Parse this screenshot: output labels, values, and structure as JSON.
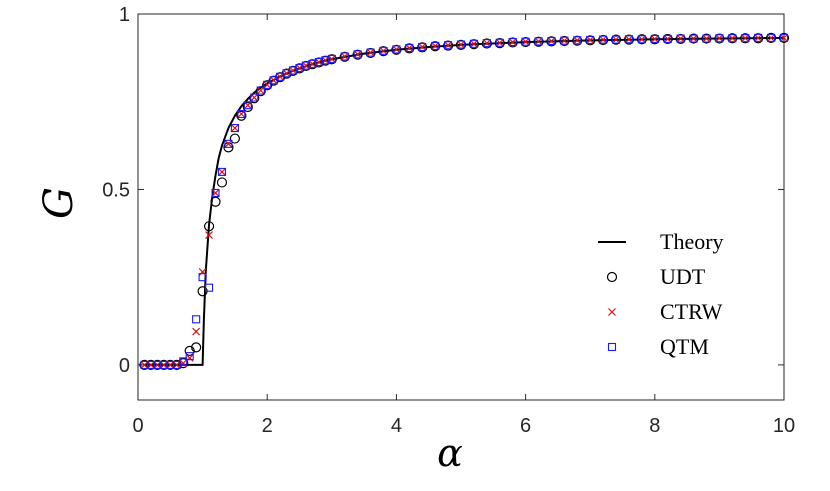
{
  "chart_data": {
    "type": "scatter",
    "xlabel": "α",
    "ylabel": "G",
    "xlim": [
      0,
      10
    ],
    "ylim": [
      -0.1,
      1.0
    ],
    "xticks": [
      0,
      2,
      4,
      6,
      8,
      10
    ],
    "yticks": [
      0,
      0.5,
      1
    ],
    "xtick_labels": [
      "0",
      "2",
      "4",
      "6",
      "8",
      "10"
    ],
    "ytick_labels": [
      "0",
      "0.5",
      "1"
    ],
    "grid": false,
    "legend_position": "lower-right",
    "theory": {
      "name": "Theory",
      "color": "#000000",
      "x": [
        0.1,
        0.5,
        0.95,
        1.0,
        1.02,
        1.05,
        1.1,
        1.15,
        1.2,
        1.25,
        1.3,
        1.4,
        1.5,
        1.6,
        1.7,
        1.8,
        1.9,
        2.0,
        2.2,
        2.4,
        2.6,
        2.8,
        3.0,
        3.5,
        4.0,
        4.5,
        5.0,
        6.0,
        7.0,
        8.0,
        9.0,
        10.0
      ],
      "y": [
        0,
        0,
        0,
        0,
        0.13,
        0.27,
        0.4,
        0.48,
        0.54,
        0.59,
        0.625,
        0.675,
        0.71,
        0.737,
        0.758,
        0.776,
        0.79,
        0.802,
        0.822,
        0.838,
        0.851,
        0.862,
        0.871,
        0.887,
        0.898,
        0.906,
        0.912,
        0.92,
        0.925,
        0.928,
        0.93,
        0.932
      ]
    },
    "series": [
      {
        "name": "UDT",
        "marker": "circle",
        "color": "#000000",
        "x": [
          0.1,
          0.2,
          0.3,
          0.4,
          0.5,
          0.6,
          0.7,
          0.8,
          0.9,
          1.0,
          1.1,
          1.2,
          1.3,
          1.4,
          1.5,
          1.6,
          1.7,
          1.8,
          1.9,
          2.0,
          2.1,
          2.2,
          2.3,
          2.4,
          2.5,
          2.6,
          2.7,
          2.8,
          2.9,
          3.0,
          3.2,
          3.4,
          3.6,
          3.8,
          4.0,
          4.2,
          4.4,
          4.6,
          4.8,
          5.0,
          5.2,
          5.4,
          5.6,
          5.8,
          6.0,
          6.2,
          6.4,
          6.6,
          6.8,
          7.0,
          7.2,
          7.4,
          7.6,
          7.8,
          8.0,
          8.2,
          8.4,
          8.6,
          8.8,
          9.0,
          9.2,
          9.4,
          9.6,
          9.8,
          10.0
        ],
        "values": [
          0,
          0,
          0,
          0,
          0,
          0,
          0.005,
          0.04,
          0.05,
          0.21,
          0.395,
          0.465,
          0.52,
          0.62,
          0.645,
          0.71,
          0.735,
          0.76,
          0.78,
          0.797,
          0.81,
          0.82,
          0.83,
          0.838,
          0.845,
          0.852,
          0.857,
          0.862,
          0.867,
          0.871,
          0.878,
          0.884,
          0.889,
          0.894,
          0.898,
          0.902,
          0.905,
          0.908,
          0.91,
          0.912,
          0.914,
          0.916,
          0.917,
          0.919,
          0.92,
          0.921,
          0.922,
          0.923,
          0.924,
          0.925,
          0.926,
          0.927,
          0.927,
          0.928,
          0.928,
          0.929,
          0.929,
          0.93,
          0.93,
          0.93,
          0.931,
          0.931,
          0.931,
          0.932,
          0.932
        ]
      },
      {
        "name": "CTRW",
        "marker": "x",
        "color": "#e01010",
        "x": [
          0.1,
          0.2,
          0.3,
          0.4,
          0.5,
          0.6,
          0.7,
          0.8,
          0.9,
          1.0,
          1.1,
          1.2,
          1.3,
          1.4,
          1.5,
          1.6,
          1.7,
          1.8,
          1.9,
          2.0,
          2.1,
          2.2,
          2.3,
          2.4,
          2.5,
          2.6,
          2.7,
          2.8,
          2.9,
          3.0,
          3.2,
          3.4,
          3.6,
          3.8,
          4.0,
          4.2,
          4.4,
          4.6,
          4.8,
          5.0,
          5.2,
          5.4,
          5.6,
          5.8,
          6.0,
          6.2,
          6.4,
          6.6,
          6.8,
          7.0,
          7.2,
          7.4,
          7.6,
          7.8,
          8.0,
          8.2,
          8.4,
          8.6,
          8.8,
          9.0,
          9.2,
          9.4,
          9.6,
          9.8,
          10.0
        ],
        "values": [
          0,
          0,
          0,
          0,
          0,
          0,
          0.005,
          0.02,
          0.095,
          0.265,
          0.37,
          0.49,
          0.55,
          0.63,
          0.675,
          0.715,
          0.74,
          0.762,
          0.782,
          0.798,
          0.811,
          0.821,
          0.831,
          0.839,
          0.846,
          0.853,
          0.858,
          0.863,
          0.868,
          0.872,
          0.879,
          0.885,
          0.89,
          0.895,
          0.899,
          0.903,
          0.906,
          0.909,
          0.911,
          0.913,
          0.915,
          0.917,
          0.918,
          0.92,
          0.921,
          0.922,
          0.923,
          0.924,
          0.925,
          0.926,
          0.927,
          0.927,
          0.928,
          0.928,
          0.929,
          0.929,
          0.93,
          0.93,
          0.93,
          0.931,
          0.931,
          0.931,
          0.932,
          0.932,
          0.932
        ]
      },
      {
        "name": "QTM",
        "marker": "square",
        "color": "#1a1aff",
        "x": [
          0.1,
          0.2,
          0.3,
          0.4,
          0.5,
          0.6,
          0.7,
          0.8,
          0.9,
          1.0,
          1.1,
          1.2,
          1.3,
          1.4,
          1.5,
          1.6,
          1.7,
          1.8,
          1.9,
          2.0,
          2.1,
          2.2,
          2.3,
          2.4,
          2.5,
          2.6,
          2.7,
          2.8,
          2.9,
          3.0,
          3.2,
          3.4,
          3.6,
          3.8,
          4.0,
          4.2,
          4.4,
          4.6,
          4.8,
          5.0,
          5.2,
          5.4,
          5.6,
          5.8,
          6.0,
          6.2,
          6.4,
          6.6,
          6.8,
          7.0,
          7.2,
          7.4,
          7.6,
          7.8,
          8.0,
          8.2,
          8.4,
          8.6,
          8.8,
          9.0,
          9.2,
          9.4,
          9.6,
          9.8,
          10.0
        ],
        "values": [
          0,
          0,
          0,
          0,
          0,
          0,
          0.01,
          0.025,
          0.13,
          0.25,
          0.22,
          0.49,
          0.55,
          0.63,
          0.675,
          0.715,
          0.74,
          0.762,
          0.782,
          0.798,
          0.811,
          0.821,
          0.831,
          0.839,
          0.846,
          0.853,
          0.858,
          0.863,
          0.868,
          0.872,
          0.879,
          0.885,
          0.89,
          0.895,
          0.899,
          0.903,
          0.906,
          0.909,
          0.911,
          0.913,
          0.915,
          0.917,
          0.918,
          0.92,
          0.921,
          0.922,
          0.923,
          0.924,
          0.925,
          0.926,
          0.927,
          0.927,
          0.928,
          0.928,
          0.929,
          0.929,
          0.93,
          0.93,
          0.93,
          0.931,
          0.931,
          0.931,
          0.932,
          0.932,
          0.932
        ]
      }
    ]
  }
}
